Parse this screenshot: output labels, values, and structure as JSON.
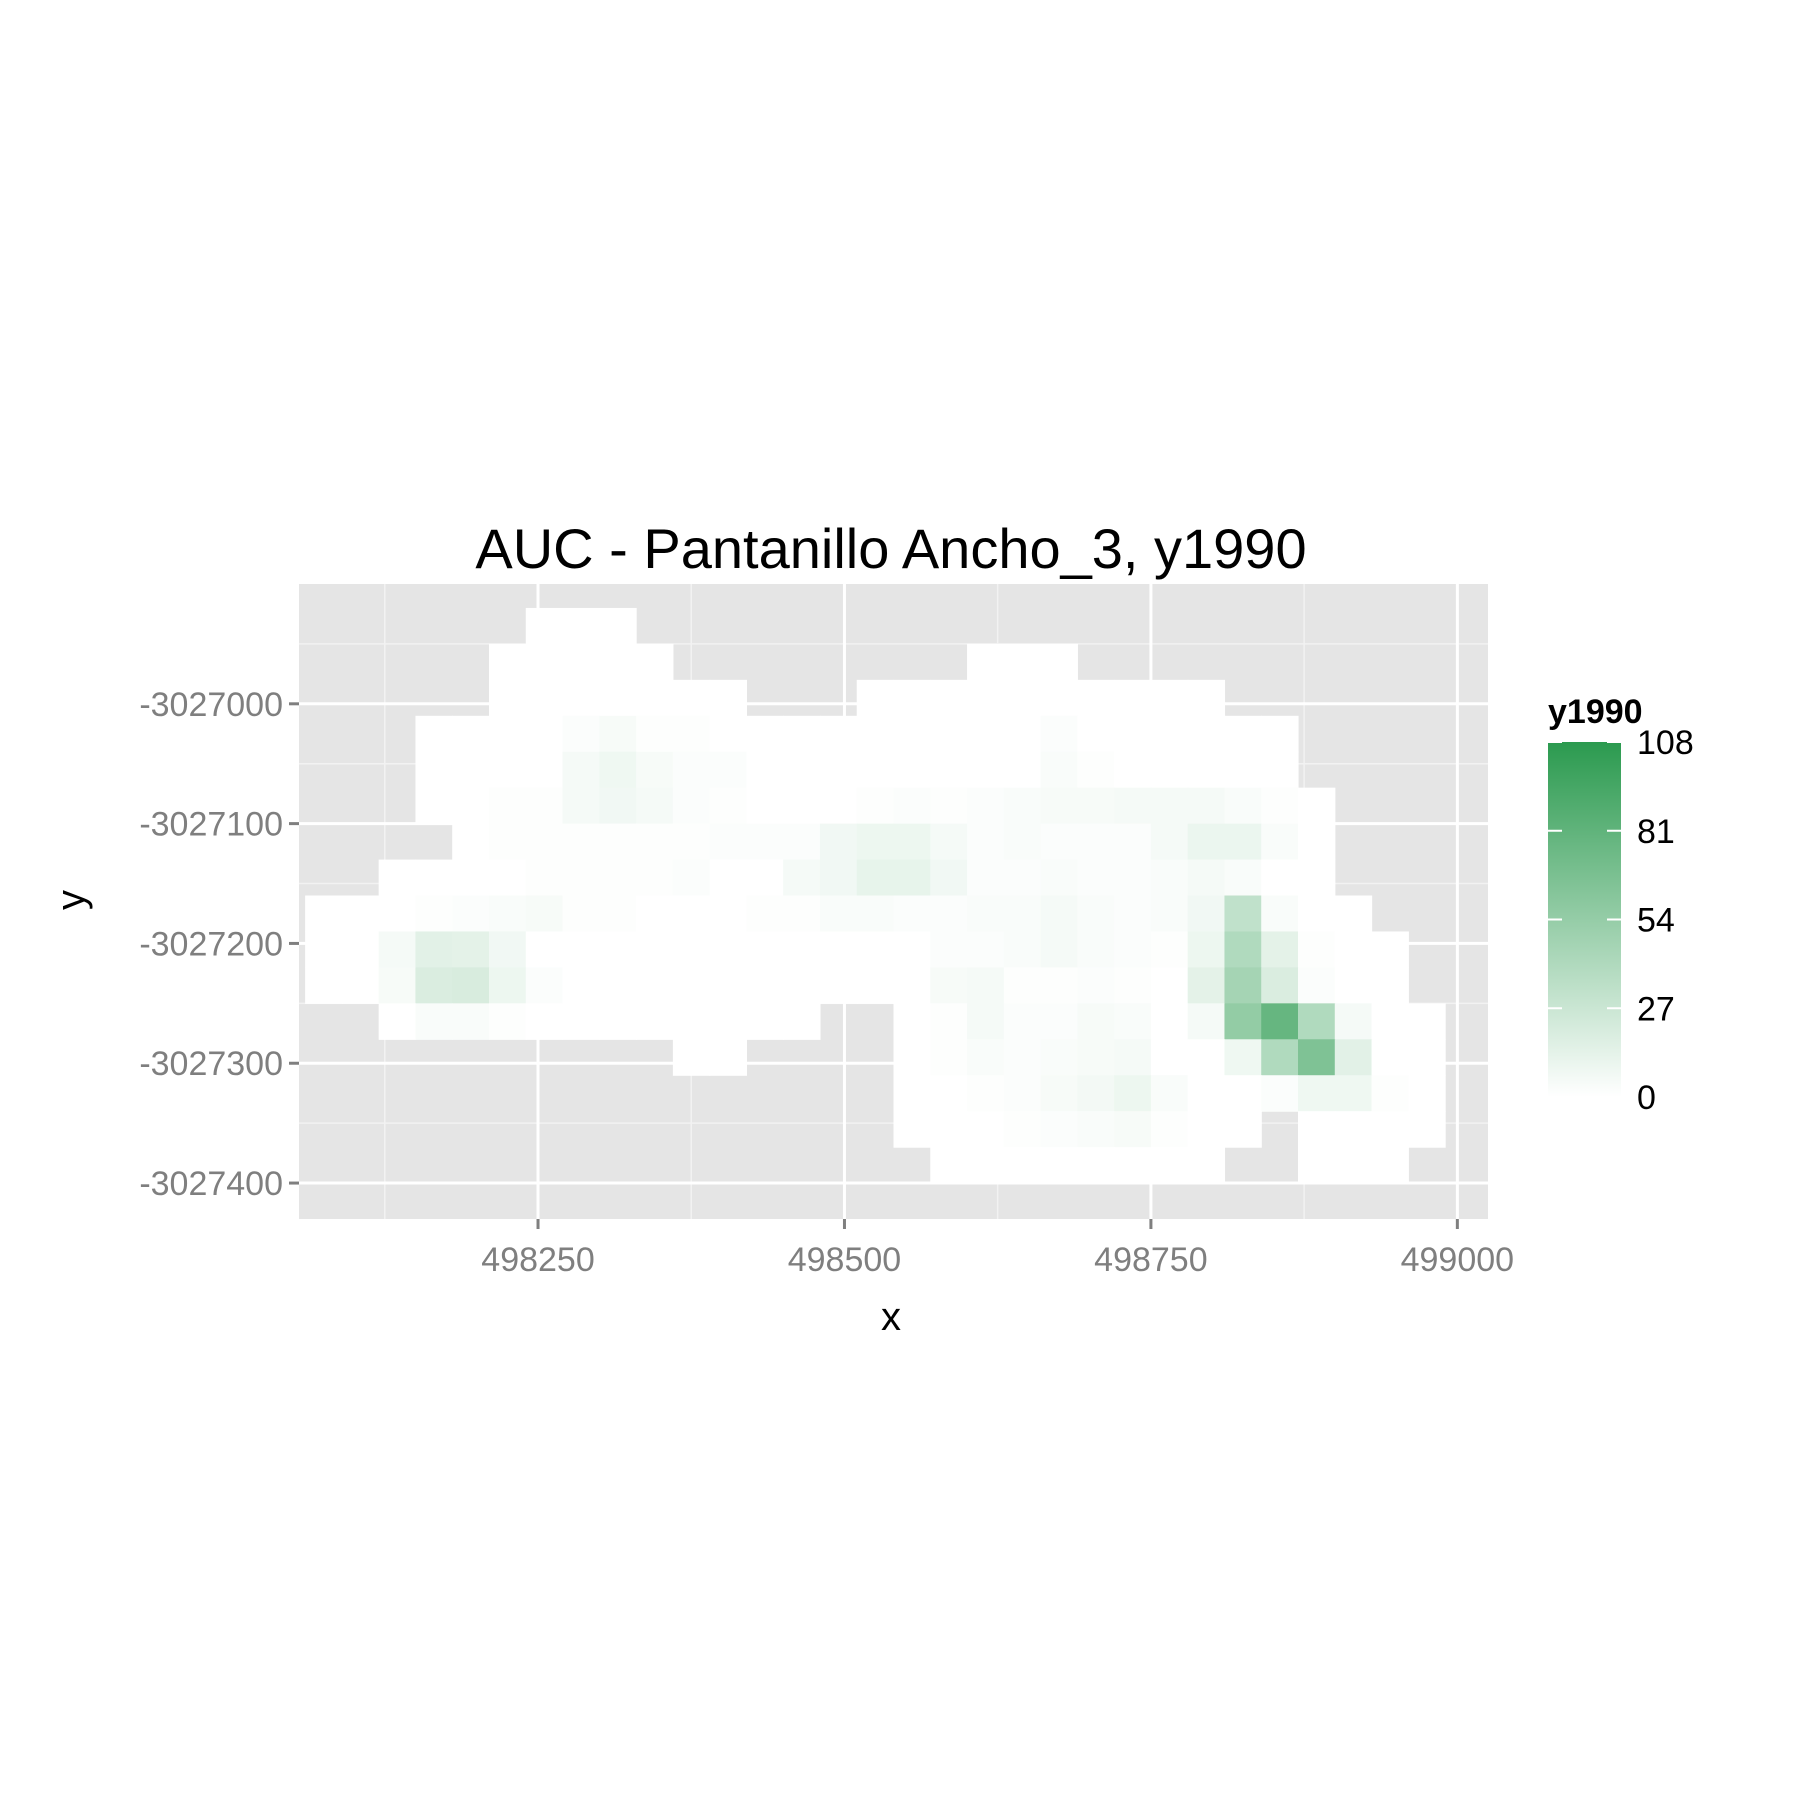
{
  "chart_data": {
    "type": "heatmap",
    "title": "AUC - Pantanillo Ancho_3, y1990",
    "xlabel": "x",
    "ylabel": "y",
    "xlim": [
      498055,
      499025
    ],
    "ylim": [
      -3027430,
      -3026900
    ],
    "x_ticks": [
      498250,
      498500,
      498750,
      499000
    ],
    "y_ticks": [
      -3027000,
      -3027100,
      -3027200,
      -3027300,
      -3027400
    ],
    "x_tick_labels": [
      "498250",
      "498500",
      "498750",
      "499000"
    ],
    "y_tick_labels": [
      "-3027000",
      "-3027100",
      "-3027200",
      "-3027300",
      "-3027400"
    ],
    "grid": true,
    "cell_size": 30,
    "x_origin": 498060,
    "y_origin": -3026920,
    "rows": [
      ".......00.......................",
      "......0000...............000....",
      "......000000.....0000000000000..",
      "....00011100000000000000000000..",
      "....00033300000000000010000000..",
      "....00036621000000000112110000..",
      "....0013451100000000001222211210",
      "......0000000000000000111133331..",
      "..000000000000012467411121111221.",
      "..0000000000001357872111111111111.",
      ".0000111100000000000012211111111100.",
      "0000012222000000000000221111100132420.",
      "000110000000000000000000000"
    ],
    "cells": [
      [
        0,
        6,
        0
      ],
      [
        0,
        7,
        0
      ],
      [
        0,
        8,
        0
      ],
      [
        1,
        5,
        0
      ],
      [
        1,
        6,
        0
      ],
      [
        1,
        7,
        0
      ],
      [
        1,
        8,
        0
      ],
      [
        1,
        9,
        0
      ],
      [
        1,
        18,
        0
      ],
      [
        1,
        19,
        0
      ],
      [
        1,
        20,
        0
      ],
      [
        2,
        5,
        0
      ],
      [
        2,
        6,
        0
      ],
      [
        2,
        7,
        0
      ],
      [
        2,
        8,
        0
      ],
      [
        2,
        9,
        0
      ],
      [
        2,
        10,
        0
      ],
      [
        2,
        11,
        0
      ],
      [
        2,
        15,
        0
      ],
      [
        2,
        16,
        0
      ],
      [
        2,
        17,
        0
      ],
      [
        2,
        18,
        0
      ],
      [
        2,
        19,
        0
      ],
      [
        2,
        20,
        0
      ],
      [
        2,
        21,
        0
      ],
      [
        2,
        22,
        0
      ],
      [
        2,
        23,
        0
      ],
      [
        2,
        24,
        0
      ],
      [
        3,
        3,
        0
      ],
      [
        3,
        4,
        0
      ],
      [
        3,
        5,
        0
      ],
      [
        3,
        6,
        0
      ],
      [
        3,
        7,
        2
      ],
      [
        3,
        8,
        4
      ],
      [
        3,
        9,
        1
      ],
      [
        3,
        10,
        1
      ],
      [
        3,
        11,
        0
      ],
      [
        3,
        12,
        0
      ],
      [
        3,
        13,
        0
      ],
      [
        3,
        14,
        0
      ],
      [
        3,
        15,
        0
      ],
      [
        3,
        16,
        0
      ],
      [
        3,
        17,
        0
      ],
      [
        3,
        18,
        0
      ],
      [
        3,
        19,
        0
      ],
      [
        3,
        20,
        2
      ],
      [
        3,
        21,
        0
      ],
      [
        3,
        22,
        0
      ],
      [
        3,
        23,
        0
      ],
      [
        3,
        24,
        0
      ],
      [
        3,
        25,
        0
      ],
      [
        3,
        26,
        0
      ],
      [
        4,
        3,
        0
      ],
      [
        4,
        4,
        0
      ],
      [
        4,
        5,
        0
      ],
      [
        4,
        6,
        0
      ],
      [
        4,
        7,
        5
      ],
      [
        4,
        8,
        8
      ],
      [
        4,
        9,
        4
      ],
      [
        4,
        10,
        2
      ],
      [
        4,
        11,
        2
      ],
      [
        4,
        12,
        0
      ],
      [
        4,
        13,
        0
      ],
      [
        4,
        14,
        0
      ],
      [
        4,
        15,
        0
      ],
      [
        4,
        16,
        0
      ],
      [
        4,
        17,
        0
      ],
      [
        4,
        18,
        0
      ],
      [
        4,
        19,
        0
      ],
      [
        4,
        20,
        3
      ],
      [
        4,
        21,
        1
      ],
      [
        4,
        22,
        0
      ],
      [
        4,
        23,
        0
      ],
      [
        4,
        24,
        0
      ],
      [
        4,
        25,
        0
      ],
      [
        4,
        26,
        0
      ],
      [
        5,
        3,
        0
      ],
      [
        5,
        4,
        0
      ],
      [
        5,
        5,
        1
      ],
      [
        5,
        6,
        1
      ],
      [
        5,
        7,
        5
      ],
      [
        5,
        8,
        7
      ],
      [
        5,
        9,
        5
      ],
      [
        5,
        10,
        2
      ],
      [
        5,
        11,
        1
      ],
      [
        5,
        12,
        0
      ],
      [
        5,
        13,
        0
      ],
      [
        5,
        14,
        0
      ],
      [
        5,
        15,
        1
      ],
      [
        5,
        16,
        2
      ],
      [
        5,
        17,
        1
      ],
      [
        5,
        18,
        2
      ],
      [
        5,
        19,
        3
      ],
      [
        5,
        20,
        4
      ],
      [
        5,
        21,
        4
      ],
      [
        5,
        22,
        5
      ],
      [
        5,
        23,
        5
      ],
      [
        5,
        24,
        5
      ],
      [
        5,
        25,
        3
      ],
      [
        5,
        26,
        1
      ],
      [
        5,
        27,
        0
      ],
      [
        6,
        4,
        0
      ],
      [
        6,
        5,
        1
      ],
      [
        6,
        6,
        1
      ],
      [
        6,
        7,
        1
      ],
      [
        6,
        8,
        1
      ],
      [
        6,
        9,
        1
      ],
      [
        6,
        10,
        1
      ],
      [
        6,
        11,
        2
      ],
      [
        6,
        12,
        2
      ],
      [
        6,
        13,
        2
      ],
      [
        6,
        14,
        7
      ],
      [
        6,
        15,
        9
      ],
      [
        6,
        16,
        9
      ],
      [
        6,
        17,
        5
      ],
      [
        6,
        18,
        2
      ],
      [
        6,
        19,
        3
      ],
      [
        6,
        20,
        2
      ],
      [
        6,
        21,
        2
      ],
      [
        6,
        22,
        2
      ],
      [
        6,
        23,
        5
      ],
      [
        6,
        24,
        10
      ],
      [
        6,
        25,
        10
      ],
      [
        6,
        26,
        3
      ],
      [
        6,
        27,
        0
      ],
      [
        7,
        2,
        0
      ],
      [
        7,
        3,
        0
      ],
      [
        7,
        4,
        0
      ],
      [
        7,
        5,
        0
      ],
      [
        7,
        6,
        1
      ],
      [
        7,
        7,
        1
      ],
      [
        7,
        8,
        1
      ],
      [
        7,
        9,
        1
      ],
      [
        7,
        10,
        2
      ],
      [
        7,
        11,
        0
      ],
      [
        7,
        12,
        0
      ],
      [
        7,
        13,
        5
      ],
      [
        7,
        14,
        7
      ],
      [
        7,
        15,
        12
      ],
      [
        7,
        16,
        12
      ],
      [
        7,
        17,
        7
      ],
      [
        7,
        18,
        2
      ],
      [
        7,
        19,
        2
      ],
      [
        7,
        20,
        3
      ],
      [
        7,
        21,
        2
      ],
      [
        7,
        22,
        2
      ],
      [
        7,
        23,
        3
      ],
      [
        7,
        24,
        5
      ],
      [
        7,
        25,
        3
      ],
      [
        7,
        26,
        0
      ],
      [
        7,
        27,
        0
      ],
      [
        8,
        0,
        0
      ],
      [
        8,
        1,
        0
      ],
      [
        8,
        2,
        0
      ],
      [
        8,
        3,
        1
      ],
      [
        8,
        4,
        2
      ],
      [
        8,
        5,
        3
      ],
      [
        8,
        6,
        4
      ],
      [
        8,
        7,
        1
      ],
      [
        8,
        8,
        1
      ],
      [
        8,
        9,
        0
      ],
      [
        8,
        10,
        0
      ],
      [
        8,
        11,
        0
      ],
      [
        8,
        12,
        1
      ],
      [
        8,
        13,
        1
      ],
      [
        8,
        14,
        3
      ],
      [
        8,
        15,
        3
      ],
      [
        8,
        16,
        2
      ],
      [
        8,
        17,
        2
      ],
      [
        8,
        18,
        3
      ],
      [
        8,
        19,
        3
      ],
      [
        8,
        20,
        5
      ],
      [
        8,
        21,
        3
      ],
      [
        8,
        22,
        2
      ],
      [
        8,
        23,
        3
      ],
      [
        8,
        24,
        7
      ],
      [
        8,
        25,
        32
      ],
      [
        8,
        26,
        3
      ],
      [
        8,
        27,
        0
      ],
      [
        8,
        28,
        0
      ],
      [
        9,
        0,
        0
      ],
      [
        9,
        1,
        0
      ],
      [
        9,
        2,
        5
      ],
      [
        9,
        3,
        15
      ],
      [
        9,
        4,
        14
      ],
      [
        9,
        5,
        7
      ],
      [
        9,
        6,
        0
      ],
      [
        9,
        7,
        0
      ],
      [
        9,
        8,
        0
      ],
      [
        9,
        9,
        0
      ],
      [
        9,
        10,
        0
      ],
      [
        9,
        11,
        0
      ],
      [
        9,
        12,
        0
      ],
      [
        9,
        13,
        0
      ],
      [
        9,
        14,
        0
      ],
      [
        9,
        15,
        0
      ],
      [
        9,
        16,
        0
      ],
      [
        9,
        17,
        2
      ],
      [
        9,
        18,
        2
      ],
      [
        9,
        19,
        3
      ],
      [
        9,
        20,
        5
      ],
      [
        9,
        21,
        3
      ],
      [
        9,
        22,
        2
      ],
      [
        9,
        23,
        1
      ],
      [
        9,
        24,
        9
      ],
      [
        9,
        25,
        40
      ],
      [
        9,
        26,
        14
      ],
      [
        9,
        27,
        1
      ],
      [
        9,
        28,
        0
      ],
      [
        9,
        29,
        0
      ],
      [
        10,
        0,
        0
      ],
      [
        10,
        1,
        0
      ],
      [
        10,
        2,
        4
      ],
      [
        10,
        3,
        19
      ],
      [
        10,
        4,
        20
      ],
      [
        10,
        5,
        9
      ],
      [
        10,
        6,
        2
      ],
      [
        10,
        7,
        0
      ],
      [
        10,
        8,
        0
      ],
      [
        10,
        9,
        0
      ],
      [
        10,
        10,
        0
      ],
      [
        10,
        11,
        0
      ],
      [
        10,
        12,
        0
      ],
      [
        10,
        13,
        0
      ],
      [
        10,
        14,
        0
      ],
      [
        10,
        15,
        0
      ],
      [
        10,
        16,
        0
      ],
      [
        10,
        17,
        4
      ],
      [
        10,
        18,
        5
      ],
      [
        10,
        19,
        1
      ],
      [
        10,
        20,
        1
      ],
      [
        10,
        21,
        2
      ],
      [
        10,
        22,
        1
      ],
      [
        10,
        23,
        0
      ],
      [
        10,
        24,
        14
      ],
      [
        10,
        25,
        46
      ],
      [
        10,
        26,
        19
      ],
      [
        10,
        27,
        2
      ],
      [
        10,
        28,
        0
      ],
      [
        10,
        29,
        0
      ],
      [
        11,
        2,
        0
      ],
      [
        11,
        3,
        3
      ],
      [
        11,
        4,
        3
      ],
      [
        11,
        5,
        1
      ],
      [
        11,
        6,
        0
      ],
      [
        11,
        7,
        0
      ],
      [
        11,
        8,
        0
      ],
      [
        11,
        9,
        0
      ],
      [
        11,
        10,
        0
      ],
      [
        11,
        11,
        0
      ],
      [
        11,
        12,
        0
      ],
      [
        11,
        13,
        0
      ],
      [
        11,
        16,
        0
      ],
      [
        11,
        17,
        1
      ],
      [
        11,
        18,
        5
      ],
      [
        11,
        19,
        2
      ],
      [
        11,
        20,
        2
      ],
      [
        11,
        21,
        4
      ],
      [
        11,
        22,
        3
      ],
      [
        11,
        23,
        0
      ],
      [
        11,
        24,
        5
      ],
      [
        11,
        25,
        55
      ],
      [
        11,
        26,
        78
      ],
      [
        11,
        27,
        40
      ],
      [
        11,
        28,
        5
      ],
      [
        11,
        29,
        0
      ],
      [
        11,
        30,
        0
      ],
      [
        12,
        10,
        0
      ],
      [
        12,
        11,
        0
      ],
      [
        12,
        16,
        0
      ],
      [
        12,
        17,
        1
      ],
      [
        12,
        18,
        3
      ],
      [
        12,
        19,
        2
      ],
      [
        12,
        20,
        3
      ],
      [
        12,
        21,
        4
      ],
      [
        12,
        22,
        5
      ],
      [
        12,
        23,
        0
      ],
      [
        12,
        24,
        0
      ],
      [
        12,
        25,
        8
      ],
      [
        12,
        26,
        40
      ],
      [
        12,
        27,
        65
      ],
      [
        12,
        28,
        15
      ],
      [
        12,
        29,
        0
      ],
      [
        12,
        30,
        0
      ],
      [
        13,
        16,
        0
      ],
      [
        13,
        17,
        0
      ],
      [
        13,
        18,
        1
      ],
      [
        13,
        19,
        2
      ],
      [
        13,
        20,
        4
      ],
      [
        13,
        21,
        6
      ],
      [
        13,
        22,
        9
      ],
      [
        13,
        23,
        3
      ],
      [
        13,
        24,
        0
      ],
      [
        13,
        25,
        0
      ],
      [
        13,
        26,
        2
      ],
      [
        13,
        27,
        8
      ],
      [
        13,
        28,
        8
      ],
      [
        13,
        29,
        1
      ],
      [
        13,
        30,
        0
      ],
      [
        14,
        16,
        0
      ],
      [
        14,
        17,
        0
      ],
      [
        14,
        18,
        0
      ],
      [
        14,
        19,
        1
      ],
      [
        14,
        20,
        2
      ],
      [
        14,
        21,
        3
      ],
      [
        14,
        22,
        4
      ],
      [
        14,
        23,
        1
      ],
      [
        14,
        24,
        0
      ],
      [
        14,
        25,
        0
      ],
      [
        14,
        27,
        0
      ],
      [
        14,
        28,
        0
      ],
      [
        14,
        29,
        0
      ],
      [
        14,
        30,
        0
      ],
      [
        15,
        17,
        0
      ],
      [
        15,
        18,
        0
      ],
      [
        15,
        19,
        0
      ],
      [
        15,
        20,
        0
      ],
      [
        15,
        21,
        0
      ],
      [
        15,
        22,
        0
      ],
      [
        15,
        23,
        0
      ],
      [
        15,
        24,
        0
      ],
      [
        15,
        27,
        0
      ],
      [
        15,
        28,
        0
      ],
      [
        15,
        29,
        0
      ]
    ],
    "legend": {
      "title": "y1990",
      "min": 0,
      "max": 108,
      "breaks": [
        0,
        27,
        54,
        81,
        108
      ],
      "low_color": "#ffffff",
      "high_color": "#2b9a4f",
      "position": "right"
    },
    "panel_background": "#e5e5e5",
    "grid_color": "#ffffff"
  }
}
